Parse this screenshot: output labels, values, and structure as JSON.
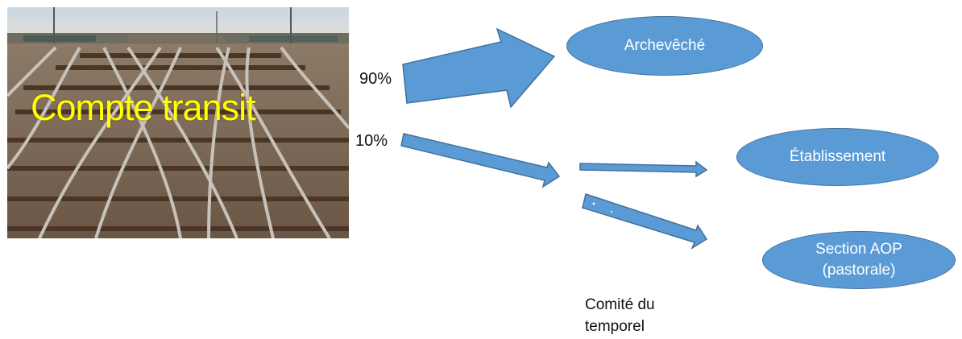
{
  "photo": {
    "caption": "Compte transit",
    "icon": "railway-tracks-photo"
  },
  "split": {
    "large_percent": "90%",
    "small_percent": "10%"
  },
  "destinations": {
    "archdiocese": "Archevêché",
    "establishment": "Établissement",
    "section_line1": "Section AOP",
    "section_line2": "(pastorale)"
  },
  "note": {
    "line1": "Comité du",
    "line2": "temporel"
  },
  "colors": {
    "shape_fill": "#5b9bd5",
    "shape_stroke": "#41719c",
    "caption": "#ffff00"
  }
}
